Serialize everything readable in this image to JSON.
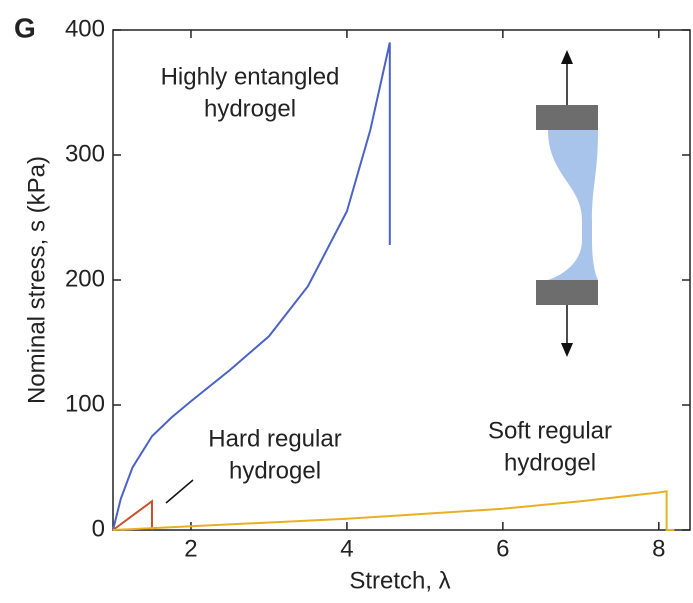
{
  "chart_data": {
    "type": "line",
    "panel_label": "G",
    "xlabel": "Stretch, λ",
    "ylabel": "Nominal stress, s (kPa)",
    "xlim": [
      1,
      8.4
    ],
    "ylim": [
      0,
      400
    ],
    "xticks": [
      2,
      4,
      6,
      8
    ],
    "yticks": [
      0,
      100,
      200,
      300,
      400
    ],
    "series": [
      {
        "color": "#4a63c4",
        "x": [
          1,
          1.1,
          1.25,
          1.5,
          1.75,
          2,
          2.5,
          3,
          3.5,
          4,
          4.3,
          4.55,
          4.55
        ],
        "values": [
          0,
          25,
          50,
          75,
          90,
          103,
          128,
          155,
          195,
          255,
          320,
          390,
          228
        ]
      },
      {
        "color": "#c8502a",
        "x": [
          1,
          1.5,
          1.5
        ],
        "values": [
          0,
          23,
          0
        ]
      },
      {
        "color": "#e8b020",
        "x": [
          1,
          2,
          4,
          6,
          7,
          8,
          8.1,
          8.1,
          8.2
        ],
        "values": [
          0,
          3,
          9,
          17,
          23,
          30,
          31,
          0,
          0
        ]
      }
    ],
    "annotations": [
      {
        "lines": [
          "Highly entangled",
          "hydrogel"
        ]
      },
      {
        "lines": [
          "Hard regular",
          "hydrogel"
        ]
      },
      {
        "lines": [
          "Soft regular",
          "hydrogel"
        ]
      }
    ]
  }
}
